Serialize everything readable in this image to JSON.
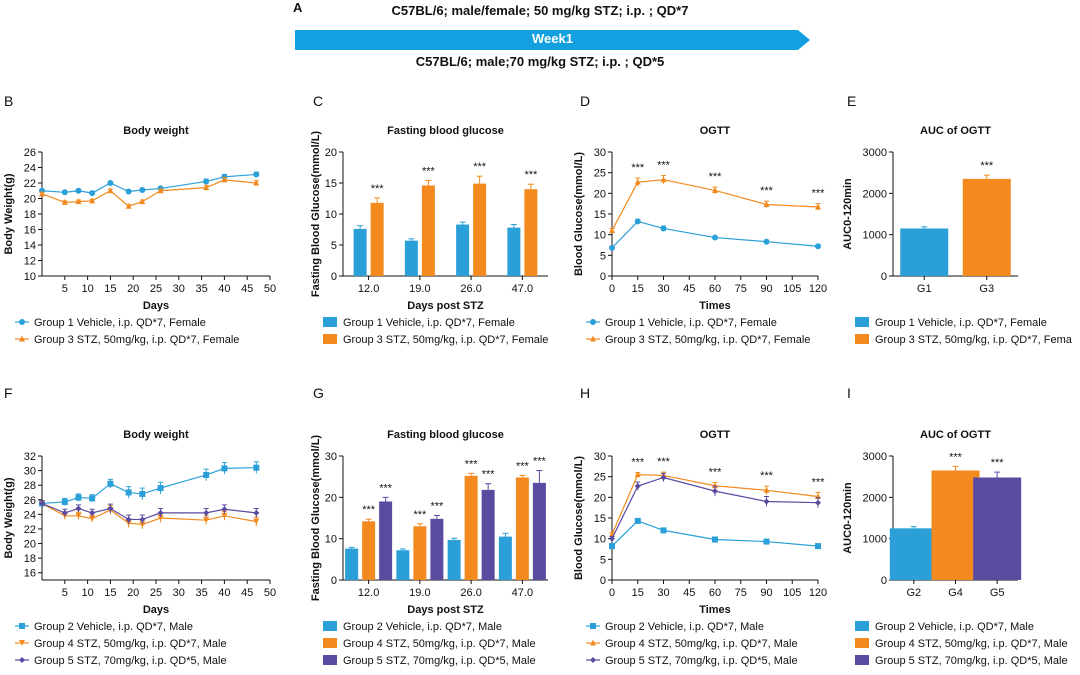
{
  "colors": {
    "blue": "#2a9fd8",
    "orange": "#f28a1f",
    "purple": "#5a4aa0",
    "banner": "#14a0e0"
  },
  "header": {
    "panel_label": "A",
    "line1": "C57BL/6; male/female; 50 mg/kg STZ; i.p. ; QD*7",
    "banner": "Week1",
    "line2": "C57BL/6; male;70 mg/kg STZ; i.p. ; QD*5"
  },
  "chart_data": [
    {
      "id": "B",
      "panel": "B",
      "type": "line",
      "title": "Body weight",
      "xlabel": "Days",
      "ylabel": "Body Weight(g)",
      "xlim": [
        0,
        50
      ],
      "xticks": [
        5,
        10,
        15,
        20,
        25,
        30,
        35,
        40,
        45,
        50
      ],
      "ylim": [
        10,
        26
      ],
      "yticks": [
        10,
        12,
        14,
        16,
        18,
        20,
        22,
        24,
        26
      ],
      "series": [
        {
          "name": "Group 1 Vehicle, i.p. QD*7, Female",
          "color": "blue",
          "marker": "circle",
          "x": [
            0,
            5,
            8,
            11,
            15,
            19,
            22,
            26,
            36,
            40,
            47
          ],
          "y": [
            21.0,
            20.8,
            21.0,
            20.7,
            22.0,
            20.9,
            21.1,
            21.3,
            22.2,
            22.8,
            23.1
          ],
          "err": [
            0.2,
            0.2,
            0.2,
            0.2,
            0.2,
            0.2,
            0.2,
            0.2,
            0.3,
            0.3,
            0.3
          ]
        },
        {
          "name": "Group 3 STZ, 50mg/kg, i.p. QD*7, Female",
          "color": "orange",
          "marker": "triangle",
          "x": [
            0,
            5,
            8,
            11,
            15,
            19,
            22,
            26,
            36,
            40,
            47
          ],
          "y": [
            20.6,
            19.5,
            19.6,
            19.7,
            21.0,
            19.0,
            19.6,
            21.0,
            21.4,
            22.4,
            22.0
          ],
          "err": [
            0.2,
            0.2,
            0.2,
            0.2,
            0.2,
            0.2,
            0.2,
            0.2,
            0.3,
            0.3,
            0.3
          ]
        }
      ]
    },
    {
      "id": "C",
      "panel": "C",
      "type": "bar",
      "title": "Fasting blood glucose",
      "xlabel": "Days post STZ",
      "ylabel": "Fasting Blood Glucose(mmol/L)",
      "categories": [
        "12.0",
        "19.0",
        "26.0",
        "47.0"
      ],
      "ylim": [
        0,
        20
      ],
      "yticks": [
        0,
        5,
        10,
        15,
        20
      ],
      "series": [
        {
          "name": "Group 1 Vehicle, i.p. QD*7, Female",
          "color": "blue",
          "values": [
            7.6,
            5.7,
            8.3,
            7.8
          ],
          "err": [
            0.5,
            0.3,
            0.4,
            0.5
          ]
        },
        {
          "name": "Group 3 STZ, 50mg/kg, i.p. QD*7, Female",
          "color": "orange",
          "values": [
            11.8,
            14.6,
            14.9,
            14.0
          ],
          "err": [
            0.8,
            0.8,
            1.2,
            0.8
          ],
          "sig": [
            "***",
            "***",
            "***",
            "***"
          ]
        }
      ]
    },
    {
      "id": "D",
      "panel": "D",
      "type": "line",
      "title": "OGTT",
      "xlabel": "Times",
      "ylabel": "Blood Glucose(mmol/L)",
      "xlim": [
        0,
        120
      ],
      "xticks": [
        0,
        15,
        30,
        45,
        60,
        75,
        90,
        105,
        120
      ],
      "ylim": [
        0,
        30
      ],
      "yticks": [
        0,
        5,
        10,
        15,
        20,
        25,
        30
      ],
      "series": [
        {
          "name": "Group 1 Vehicle, i.p. QD*7, Female",
          "color": "blue",
          "marker": "circle",
          "x": [
            0,
            15,
            30,
            60,
            90,
            120
          ],
          "y": [
            6.8,
            13.2,
            11.5,
            9.3,
            8.3,
            7.2
          ],
          "err": [
            0.3,
            0.5,
            0.6,
            0.3,
            0.3,
            0.3
          ]
        },
        {
          "name": "Group 3 STZ, 50mg/kg, i.p. QD*7, Female",
          "color": "orange",
          "marker": "triangle",
          "x": [
            0,
            15,
            30,
            60,
            90,
            120
          ],
          "y": [
            11.0,
            22.7,
            23.3,
            20.7,
            17.3,
            16.7
          ],
          "err": [
            0.5,
            1.0,
            1.0,
            0.8,
            0.8,
            0.8
          ],
          "sig": [
            "",
            "***",
            "***",
            "***",
            "***",
            "***"
          ]
        }
      ]
    },
    {
      "id": "E",
      "panel": "E",
      "type": "bar",
      "title": "AUC of OGTT",
      "xlabel": "",
      "ylabel": "AUC0-120min",
      "categories": [
        "G1",
        "G3"
      ],
      "ylim": [
        0,
        3000
      ],
      "yticks": [
        0,
        1000,
        2000,
        3000
      ],
      "series": [
        {
          "name": "AUC",
          "colors": [
            "blue",
            "orange"
          ],
          "values": [
            1150,
            2350
          ],
          "err": [
            40,
            90
          ],
          "sig": [
            "",
            "***"
          ]
        }
      ],
      "legend": [
        "Group 1 Vehicle, i.p. QD*7, Female",
        "Group 3 STZ, 50mg/kg, i.p. QD*7, Fema"
      ]
    },
    {
      "id": "F",
      "panel": "F",
      "type": "line",
      "title": "Body weight",
      "xlabel": "Days",
      "ylabel": "Body Weight(g)",
      "xlim": [
        0,
        50
      ],
      "xticks": [
        5,
        10,
        15,
        20,
        25,
        30,
        35,
        40,
        45,
        50
      ],
      "ylim": [
        15,
        32
      ],
      "yticks": [
        16,
        18,
        20,
        22,
        24,
        26,
        28,
        30,
        32
      ],
      "series": [
        {
          "name": "Group 2 Vehicle, i.p. QD*7, Male",
          "color": "blue",
          "marker": "square",
          "x": [
            0,
            5,
            8,
            11,
            15,
            19,
            22,
            26,
            36,
            40,
            47
          ],
          "y": [
            25.5,
            25.7,
            26.3,
            26.2,
            28.2,
            27.0,
            26.8,
            27.6,
            29.4,
            30.3,
            30.4
          ],
          "err": [
            0.4,
            0.5,
            0.5,
            0.5,
            0.6,
            0.8,
            0.8,
            0.8,
            0.8,
            0.8,
            0.8
          ]
        },
        {
          "name": "Group 4 STZ, 50mg/kg, i.p. QD*7, Male",
          "color": "orange",
          "marker": "vtriangle",
          "x": [
            0,
            5,
            8,
            11,
            15,
            19,
            22,
            26,
            36,
            40,
            47
          ],
          "y": [
            25.5,
            23.8,
            23.8,
            23.4,
            24.6,
            22.8,
            22.6,
            23.5,
            23.2,
            23.8,
            23.0
          ],
          "err": [
            0.4,
            0.5,
            0.5,
            0.5,
            0.6,
            0.6,
            0.6,
            0.6,
            0.6,
            0.6,
            0.6
          ]
        },
        {
          "name": "Group 5 STZ, 70mg/kg, i.p. QD*5, Male",
          "color": "purple",
          "marker": "diamond",
          "x": [
            0,
            5,
            8,
            11,
            15,
            19,
            22,
            26,
            36,
            40,
            47
          ],
          "y": [
            25.5,
            24.2,
            24.8,
            24.2,
            24.8,
            23.3,
            23.3,
            24.2,
            24.2,
            24.7,
            24.2
          ],
          "err": [
            0.4,
            0.5,
            0.5,
            0.5,
            0.6,
            0.6,
            0.6,
            0.6,
            0.6,
            0.6,
            0.6
          ]
        }
      ]
    },
    {
      "id": "G",
      "panel": "G",
      "type": "bar",
      "title": "Fasting blood glucose",
      "xlabel": "Days post STZ",
      "ylabel": "Fasting Blood Glucose(mmol/L)",
      "categories": [
        "12.0",
        "19.0",
        "26.0",
        "47.0"
      ],
      "ylim": [
        0,
        30
      ],
      "yticks": [
        0,
        10,
        20,
        30
      ],
      "series": [
        {
          "name": "Group 2 Vehicle, i.p. QD*7, Male",
          "color": "blue",
          "values": [
            7.6,
            7.2,
            9.7,
            10.5
          ],
          "err": [
            0.3,
            0.3,
            0.4,
            0.8
          ]
        },
        {
          "name": "Group 4 STZ, 50mg/kg, i.p. QD*7, Male",
          "color": "orange",
          "values": [
            14.2,
            13.0,
            25.2,
            24.8
          ],
          "err": [
            0.5,
            0.6,
            0.6,
            0.5
          ],
          "sig": [
            "***",
            "***",
            "***",
            "***"
          ]
        },
        {
          "name": "Group 5 STZ, 70mg/kg, i.p. QD*5, Male",
          "color": "purple",
          "values": [
            19.0,
            14.8,
            21.8,
            23.5
          ],
          "err": [
            1.0,
            0.8,
            1.5,
            3.0
          ],
          "sig": [
            "***",
            "***",
            "***",
            "***"
          ]
        }
      ]
    },
    {
      "id": "H",
      "panel": "H",
      "type": "line",
      "title": "OGTT",
      "xlabel": "Times",
      "ylabel": "Blood Glucose(mmol/L)",
      "xlim": [
        0,
        120
      ],
      "xticks": [
        0,
        15,
        30,
        45,
        60,
        75,
        90,
        105,
        120
      ],
      "ylim": [
        0,
        30
      ],
      "yticks": [
        0,
        5,
        10,
        15,
        20,
        25,
        30
      ],
      "series": [
        {
          "name": "Group 2 Vehicle, i.p. QD*7, Male",
          "color": "blue",
          "marker": "square",
          "x": [
            0,
            15,
            30,
            60,
            90,
            120
          ],
          "y": [
            8.2,
            14.3,
            12.0,
            9.8,
            9.3,
            8.2
          ],
          "err": [
            0.4,
            0.5,
            0.5,
            0.4,
            0.4,
            0.4
          ]
        },
        {
          "name": "Group 4 STZ, 50mg/kg, i.p. QD*7, Male",
          "color": "orange",
          "marker": "triangle",
          "x": [
            0,
            15,
            30,
            60,
            90,
            120
          ],
          "y": [
            11.0,
            25.5,
            25.3,
            22.8,
            21.7,
            20.2
          ],
          "err": [
            0.5,
            0.5,
            0.8,
            0.8,
            1.0,
            1.0
          ],
          "sig": [
            "",
            "***",
            "***",
            "***",
            "***",
            "***"
          ]
        },
        {
          "name": "Group 5 STZ, 70mg/kg, i.p. QD*5, Male",
          "color": "purple",
          "marker": "diamond",
          "x": [
            0,
            15,
            30,
            60,
            90,
            120
          ],
          "y": [
            10.0,
            22.7,
            24.8,
            21.5,
            19.0,
            18.7
          ],
          "err": [
            0.5,
            1.0,
            1.0,
            1.2,
            1.2,
            1.2
          ]
        }
      ]
    },
    {
      "id": "I",
      "panel": "I",
      "type": "bar",
      "title": "AUC of OGTT",
      "xlabel": "",
      "ylabel": "AUC0-120min",
      "categories": [
        "G2",
        "G4",
        "G5"
      ],
      "ylim": [
        0,
        3000
      ],
      "yticks": [
        0,
        1000,
        2000,
        3000
      ],
      "series": [
        {
          "name": "AUC",
          "colors": [
            "blue",
            "orange",
            "purple"
          ],
          "values": [
            1250,
            2650,
            2480
          ],
          "err": [
            40,
            100,
            130
          ],
          "sig": [
            "",
            "***",
            "***"
          ]
        }
      ],
      "legend": [
        "Group 2 Vehicle, i.p. QD*7, Male",
        "Group 4 STZ, 50mg/kg, i.p. QD*7, Male",
        "Group 5 STZ, 70mg/kg, i.p. QD*5, Male"
      ]
    }
  ]
}
